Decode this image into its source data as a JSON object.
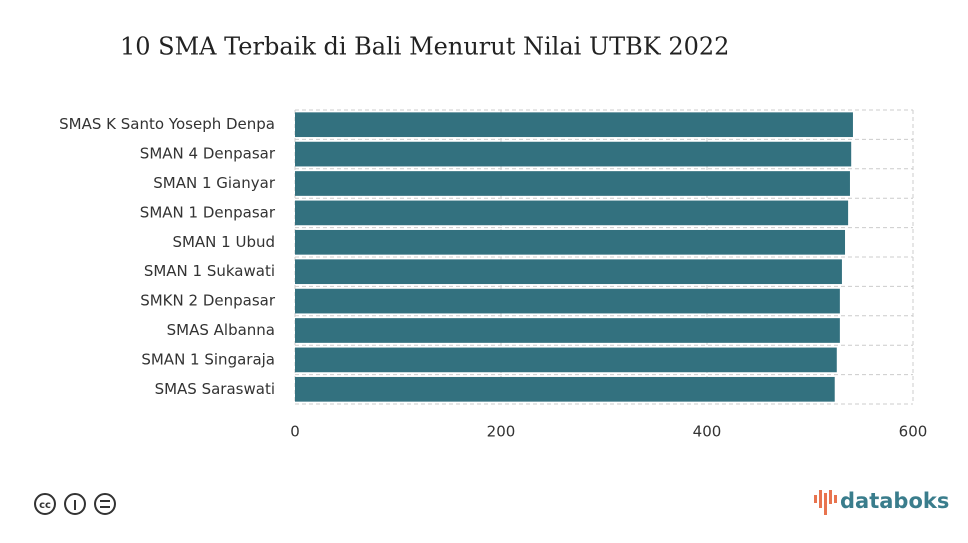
{
  "chart_data": {
    "type": "bar",
    "orientation": "horizontal",
    "title": "10 SMA Terbaik di Bali Menurut Nilai UTBK 2022",
    "categories": [
      "SMAS K Santo Yoseph Denpa",
      "SMAN 4 Denpasar",
      "SMAN 1 Gianyar",
      "SMAN 1 Denpasar",
      "SMAN 1 Ubud",
      "SMAN 1 Sukawati",
      "SMKN 2 Denpasar",
      "SMAS Albanna",
      "SMAN 1 Singaraja",
      "SMAS Saraswati"
    ],
    "values": [
      541.7,
      540,
      538.8,
      537,
      534,
      531,
      529,
      529,
      526,
      524
    ],
    "color": "#33717f",
    "xlim": [
      0,
      600
    ],
    "xticks": [
      0,
      200,
      400,
      600
    ],
    "grid": true
  },
  "footer": {
    "brand": "databoks"
  }
}
